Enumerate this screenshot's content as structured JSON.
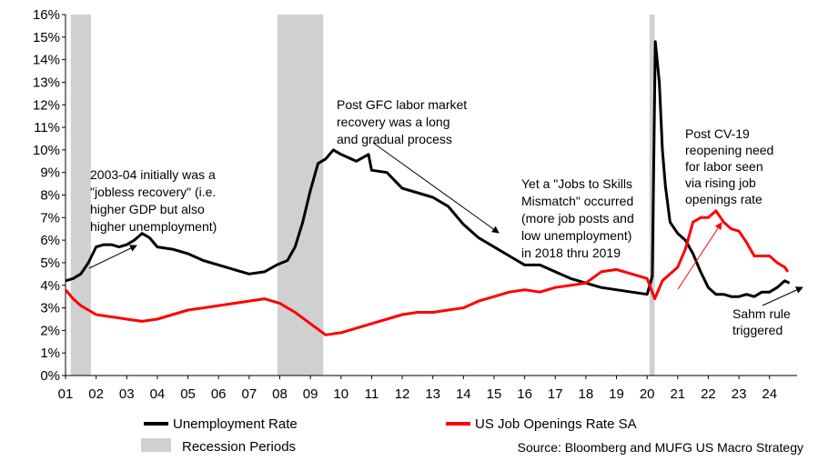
{
  "chart_data": {
    "type": "line",
    "title": "",
    "xlabel": "",
    "ylabel": "",
    "ylim": [
      0,
      16
    ],
    "xlim": [
      2001.0,
      2024.9
    ],
    "y_ticks": [
      "0%",
      "1%",
      "2%",
      "3%",
      "4%",
      "5%",
      "6%",
      "7%",
      "8%",
      "9%",
      "10%",
      "11%",
      "12%",
      "13%",
      "14%",
      "15%",
      "16%"
    ],
    "x_tick_labels": [
      "01",
      "02",
      "03",
      "04",
      "05",
      "06",
      "07",
      "08",
      "09",
      "10",
      "11",
      "12",
      "13",
      "14",
      "15",
      "16",
      "17",
      "18",
      "19",
      "20",
      "21",
      "22",
      "23",
      "24"
    ],
    "recessions": [
      [
        2001.17,
        2001.83
      ],
      [
        2007.92,
        2009.42
      ],
      [
        2020.08,
        2020.25
      ]
    ],
    "series": [
      {
        "name": "Unemployment Rate",
        "color": "#000000",
        "points": [
          [
            2001.0,
            4.2
          ],
          [
            2001.25,
            4.3
          ],
          [
            2001.5,
            4.5
          ],
          [
            2001.75,
            5.0
          ],
          [
            2002.0,
            5.7
          ],
          [
            2002.25,
            5.8
          ],
          [
            2002.5,
            5.8
          ],
          [
            2002.75,
            5.7
          ],
          [
            2003.0,
            5.8
          ],
          [
            2003.25,
            6.0
          ],
          [
            2003.5,
            6.3
          ],
          [
            2003.75,
            6.1
          ],
          [
            2004.0,
            5.7
          ],
          [
            2004.5,
            5.6
          ],
          [
            2005.0,
            5.4
          ],
          [
            2005.5,
            5.1
          ],
          [
            2006.0,
            4.9
          ],
          [
            2006.5,
            4.7
          ],
          [
            2007.0,
            4.5
          ],
          [
            2007.5,
            4.6
          ],
          [
            2007.9,
            4.9
          ],
          [
            2008.25,
            5.1
          ],
          [
            2008.5,
            5.7
          ],
          [
            2008.75,
            6.8
          ],
          [
            2009.0,
            8.2
          ],
          [
            2009.25,
            9.4
          ],
          [
            2009.5,
            9.6
          ],
          [
            2009.75,
            10.0
          ],
          [
            2010.0,
            9.8
          ],
          [
            2010.5,
            9.5
          ],
          [
            2010.9,
            9.8
          ],
          [
            2011.0,
            9.1
          ],
          [
            2011.5,
            9.0
          ],
          [
            2012.0,
            8.3
          ],
          [
            2012.5,
            8.1
          ],
          [
            2013.0,
            7.9
          ],
          [
            2013.5,
            7.5
          ],
          [
            2014.0,
            6.7
          ],
          [
            2014.5,
            6.1
          ],
          [
            2015.0,
            5.7
          ],
          [
            2015.5,
            5.3
          ],
          [
            2016.0,
            4.9
          ],
          [
            2016.5,
            4.9
          ],
          [
            2017.0,
            4.6
          ],
          [
            2017.5,
            4.3
          ],
          [
            2018.0,
            4.1
          ],
          [
            2018.5,
            3.9
          ],
          [
            2019.0,
            3.8
          ],
          [
            2019.5,
            3.7
          ],
          [
            2020.0,
            3.6
          ],
          [
            2020.17,
            4.4
          ],
          [
            2020.27,
            14.8
          ],
          [
            2020.4,
            13.0
          ],
          [
            2020.5,
            10.0
          ],
          [
            2020.6,
            8.4
          ],
          [
            2020.75,
            6.8
          ],
          [
            2021.0,
            6.3
          ],
          [
            2021.25,
            6.0
          ],
          [
            2021.5,
            5.4
          ],
          [
            2021.75,
            4.6
          ],
          [
            2022.0,
            3.9
          ],
          [
            2022.25,
            3.6
          ],
          [
            2022.5,
            3.6
          ],
          [
            2022.75,
            3.5
          ],
          [
            2023.0,
            3.5
          ],
          [
            2023.25,
            3.6
          ],
          [
            2023.5,
            3.5
          ],
          [
            2023.75,
            3.7
          ],
          [
            2024.0,
            3.7
          ],
          [
            2024.25,
            3.9
          ],
          [
            2024.5,
            4.2
          ],
          [
            2024.65,
            4.1
          ]
        ]
      },
      {
        "name": "US Job Openings Rate SA",
        "color": "#ff0000",
        "points": [
          [
            2001.0,
            3.8
          ],
          [
            2001.25,
            3.4
          ],
          [
            2001.5,
            3.1
          ],
          [
            2001.75,
            2.9
          ],
          [
            2002.0,
            2.7
          ],
          [
            2002.5,
            2.6
          ],
          [
            2003.0,
            2.5
          ],
          [
            2003.5,
            2.4
          ],
          [
            2004.0,
            2.5
          ],
          [
            2004.5,
            2.7
          ],
          [
            2005.0,
            2.9
          ],
          [
            2005.5,
            3.0
          ],
          [
            2006.0,
            3.1
          ],
          [
            2006.5,
            3.2
          ],
          [
            2007.0,
            3.3
          ],
          [
            2007.5,
            3.4
          ],
          [
            2008.0,
            3.2
          ],
          [
            2008.5,
            2.8
          ],
          [
            2009.0,
            2.3
          ],
          [
            2009.5,
            1.8
          ],
          [
            2010.0,
            1.9
          ],
          [
            2010.5,
            2.1
          ],
          [
            2011.0,
            2.3
          ],
          [
            2011.5,
            2.5
          ],
          [
            2012.0,
            2.7
          ],
          [
            2012.5,
            2.8
          ],
          [
            2013.0,
            2.8
          ],
          [
            2013.5,
            2.9
          ],
          [
            2014.0,
            3.0
          ],
          [
            2014.5,
            3.3
          ],
          [
            2015.0,
            3.5
          ],
          [
            2015.5,
            3.7
          ],
          [
            2016.0,
            3.8
          ],
          [
            2016.5,
            3.7
          ],
          [
            2017.0,
            3.9
          ],
          [
            2017.5,
            4.0
          ],
          [
            2018.0,
            4.1
          ],
          [
            2018.5,
            4.6
          ],
          [
            2019.0,
            4.7
          ],
          [
            2019.5,
            4.5
          ],
          [
            2020.0,
            4.3
          ],
          [
            2020.25,
            3.4
          ],
          [
            2020.5,
            4.2
          ],
          [
            2020.75,
            4.5
          ],
          [
            2021.0,
            4.8
          ],
          [
            2021.25,
            5.6
          ],
          [
            2021.5,
            6.8
          ],
          [
            2021.75,
            7.0
          ],
          [
            2022.0,
            7.0
          ],
          [
            2022.25,
            7.3
          ],
          [
            2022.5,
            6.8
          ],
          [
            2022.75,
            6.5
          ],
          [
            2023.0,
            6.4
          ],
          [
            2023.25,
            5.9
          ],
          [
            2023.5,
            5.3
          ],
          [
            2023.75,
            5.3
          ],
          [
            2024.0,
            5.3
          ],
          [
            2024.25,
            5.0
          ],
          [
            2024.5,
            4.8
          ],
          [
            2024.6,
            4.6
          ]
        ]
      }
    ],
    "annotations": [
      {
        "lines": [
          "2003-04 initially was a",
          "\"jobless recovery\" (i.e.",
          "higher GDP but also",
          "higher unemployment)"
        ]
      },
      {
        "lines": [
          "Post GFC labor market",
          "recovery was a long",
          "and gradual process"
        ]
      },
      {
        "lines": [
          "Yet a \"Jobs to Skills",
          "Mismatch\" occurred",
          "(more job posts and",
          "low unemployment)",
          "in 2018 thru 2019"
        ]
      },
      {
        "lines": [
          "Post CV-19",
          "reopening need",
          "for labor seen",
          "via rising job",
          "openings rate"
        ]
      },
      {
        "lines": [
          "Sahm rule",
          "triggered"
        ]
      }
    ],
    "legend": {
      "unemployment": "Unemployment Rate",
      "openings": "US Job Openings Rate SA",
      "recession": "Recession Periods"
    },
    "source": "Source: Bloomberg and MUFG US Macro Strategy"
  }
}
